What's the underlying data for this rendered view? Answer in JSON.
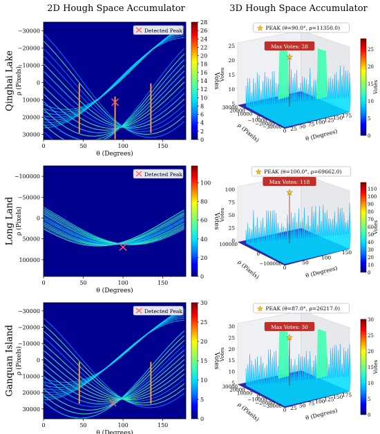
{
  "figure": {
    "col_titles": [
      "2D Hough Space Accumulator",
      "3D Hough Space Accumulator"
    ]
  },
  "colors": {
    "colormap": [
      "#000080",
      "#0000ff",
      "#0080ff",
      "#00e0ff",
      "#40ffb0",
      "#a0ff50",
      "#ffff00",
      "#ff8000",
      "#ff0000",
      "#800000"
    ],
    "background_2d": "#00008f",
    "peak_marker": "#ff6060",
    "star": "#ffcc00",
    "label_box": "#c0302a"
  },
  "chart_data": [
    {
      "type": "heatmap",
      "row_label": "Qinghai Lake",
      "xlabel": "θ (Degrees)",
      "ylabel": "ρ (Pixels)",
      "xlim": [
        0,
        179
      ],
      "ylim": [
        -35000,
        33000
      ],
      "xticks": [
        0,
        50,
        100,
        150
      ],
      "yticks": [
        -30000,
        -20000,
        -10000,
        0,
        10000,
        20000,
        30000
      ],
      "ytick_labels": [
        "−30000",
        "−20000",
        "−10000",
        "0",
        "10000",
        "20000",
        "30000"
      ],
      "legend": "Detected Peak",
      "peak": {
        "theta": 90,
        "rho": 11350
      },
      "colorbar": {
        "label": "Votes",
        "ticks": [
          0,
          2,
          4,
          6,
          8,
          10,
          12,
          14,
          16,
          18,
          20,
          22,
          24,
          26,
          28
        ],
        "max": 28
      },
      "sinusoid_band": {
        "amp": 29000,
        "phase_deg": 0,
        "half_width": 18000
      },
      "bright_columns": [
        45,
        90,
        135
      ],
      "surface": {
        "peak_label": "PEAK (θ=90.0°, ρ=11350.0)",
        "max_label": "Max Votes: 28",
        "zlabel": "Votes",
        "zticks": [
          5,
          10,
          15,
          20,
          25
        ],
        "x_axis_label": "θ (Degrees)",
        "x_ticks": [
          0,
          25,
          50,
          75,
          100,
          125,
          150,
          175
        ],
        "y_axis_label": "ρ (Pixels)",
        "y_ticks": [
          30000,
          20000,
          10000,
          0,
          -10000,
          -20000,
          -30000
        ],
        "y_tick_labels": [
          "30000",
          "20000",
          "10000",
          "0",
          "−10000",
          "−20000",
          "−30000"
        ],
        "colorbar_ticks": [
          0,
          5,
          10,
          15,
          20,
          25
        ],
        "max": 28
      }
    },
    {
      "type": "heatmap",
      "row_label": "Long Land",
      "xlabel": "θ (Degrees)",
      "ylabel": "ρ (Pixels)",
      "xlim": [
        0,
        179
      ],
      "ylim": [
        -125000,
        140000
      ],
      "xticks": [
        0,
        50,
        100,
        150
      ],
      "yticks": [
        -100000,
        -50000,
        0,
        50000,
        100000
      ],
      "ytick_labels": [
        "−100000",
        "−50000",
        "0",
        "50000",
        "100000"
      ],
      "legend": "Detected Peak",
      "peak": {
        "theta": 100,
        "rho": 69662
      },
      "colorbar": {
        "label": "Votes",
        "ticks": [
          0,
          20,
          40,
          60,
          80,
          100
        ],
        "max": 118
      },
      "sinusoid_band": {
        "amp": 70000,
        "phase_deg": 0,
        "half_width": 8000
      },
      "bright_columns": [],
      "surface": {
        "peak_label": "PEAK (θ=100.0°, ρ=69662.0)",
        "max_label": "Max Votes: 118",
        "zlabel": "Votes",
        "zticks": [
          0,
          25,
          50,
          75,
          100
        ],
        "x_axis_label": "θ (Degrees)",
        "x_ticks": [
          0,
          50,
          100,
          150
        ],
        "y_axis_label": "ρ (Pixels)",
        "y_ticks": [
          100000,
          0,
          -100000
        ],
        "y_tick_labels": [
          "100000",
          "0",
          "−100000"
        ],
        "colorbar_ticks": [
          0,
          10,
          20,
          30,
          40,
          50,
          60,
          70,
          80,
          90,
          100,
          110
        ],
        "max": 118
      }
    },
    {
      "type": "heatmap",
      "row_label": "Ganquan Island",
      "xlabel": "θ (Degrees)",
      "ylabel": "ρ (Pixels)",
      "xlim": [
        0,
        179
      ],
      "ylim": [
        -35000,
        36000
      ],
      "xticks": [
        0,
        50,
        100,
        150
      ],
      "yticks": [
        -30000,
        -20000,
        -10000,
        0,
        10000,
        20000,
        30000
      ],
      "ytick_labels": [
        "−30000",
        "−20000",
        "−10000",
        "0",
        "10000",
        "20000",
        "30000"
      ],
      "legend": "Detected Peak",
      "peak": {
        "theta": 87,
        "rho": 26217
      },
      "colorbar": {
        "label": "Votes",
        "ticks": [
          0,
          5,
          10,
          15,
          20,
          25,
          30
        ],
        "max": 30
      },
      "sinusoid_band": {
        "amp": 27000,
        "phase_deg": 0,
        "half_width": 16000
      },
      "bright_columns": [
        45,
        135
      ],
      "surface": {
        "peak_label": "PEAK (θ=87.0°, ρ=26217.0)",
        "max_label": "Max Votes: 30",
        "zlabel": "Votes",
        "zticks": [
          5,
          10,
          15,
          20,
          25,
          30
        ],
        "x_axis_label": "θ (Degrees)",
        "x_ticks": [
          0,
          25,
          50,
          75,
          100,
          125,
          150,
          175
        ],
        "y_axis_label": "ρ (Pixels)",
        "y_ticks": [
          30000,
          20000,
          10000,
          0,
          -10000,
          -20000,
          -30000
        ],
        "y_tick_labels": [
          "30000",
          "20000",
          "10000",
          "0",
          "−10000",
          "−20000",
          "−30000"
        ],
        "colorbar_ticks": [
          0,
          5,
          10,
          15,
          20,
          25,
          30
        ],
        "max": 30
      }
    }
  ]
}
